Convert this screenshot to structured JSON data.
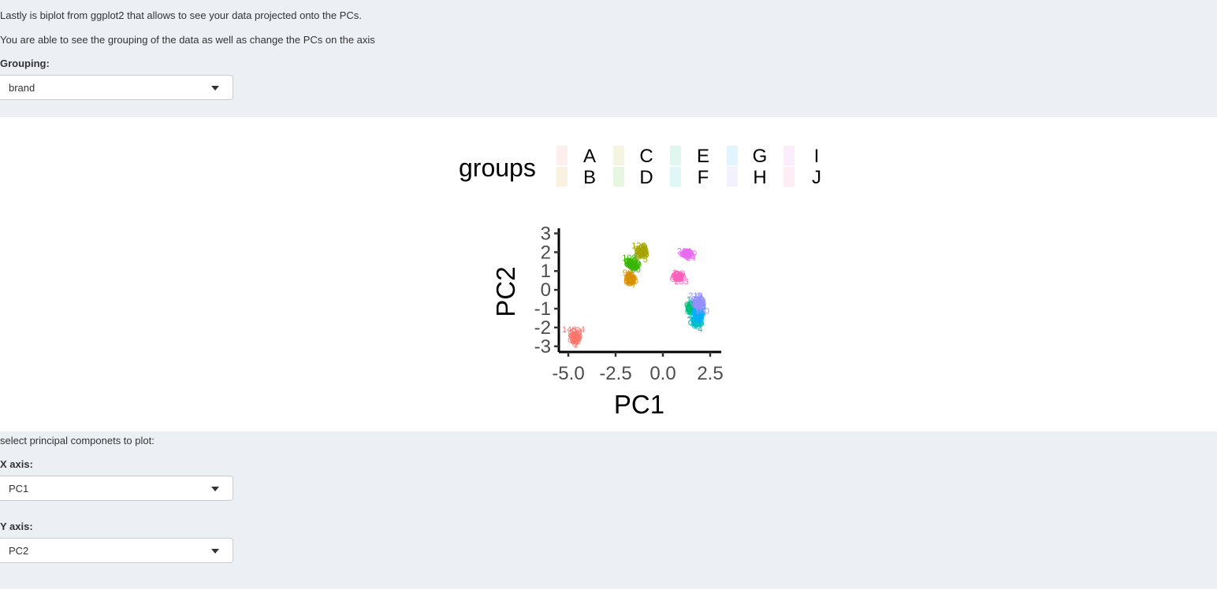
{
  "intro": {
    "line1": "Lastly is biplot from ggplot2 that allows to see your data projected onto the PCs.",
    "line2": "You are able to see the grouping of the data as well as change the PCs on the axis"
  },
  "grouping": {
    "label": "Grouping:",
    "value": "brand"
  },
  "pc_select": {
    "heading": "select principal componets to plot:",
    "x_label": "X axis:",
    "x_value": "PC1",
    "y_label": "Y axis:",
    "y_value": "PC2"
  },
  "chart_data": {
    "type": "scatter",
    "title": "",
    "xlabel": "PC1",
    "ylabel": "PC2",
    "xlim": [
      -5.5,
      3.0
    ],
    "ylim": [
      -3.3,
      3.1
    ],
    "xticks": [
      -5.0,
      -2.5,
      0.0,
      2.5
    ],
    "xtick_labels": [
      "-5.0",
      "-2.5",
      "0.0",
      "2.5"
    ],
    "yticks": [
      -3,
      -2,
      -1,
      0,
      1,
      2,
      3
    ],
    "ytick_labels": [
      "-3",
      "-2",
      "-1",
      "0",
      "1",
      "2",
      "3"
    ],
    "legend": {
      "title": "groups",
      "position": "top",
      "ncol": 5
    },
    "series": [
      {
        "name": "A",
        "color": "#F8766D",
        "center": [
          -4.6,
          -2.5
        ],
        "spread": [
          0.35,
          0.45
        ],
        "labels": [
          "148",
          "1",
          "4"
        ]
      },
      {
        "name": "B",
        "color": "#D89000",
        "center": [
          -1.7,
          0.6
        ],
        "spread": [
          0.3,
          0.35
        ],
        "labels": [
          "99",
          "7"
        ]
      },
      {
        "name": "C",
        "color": "#A3A500",
        "center": [
          -1.1,
          2.0
        ],
        "spread": [
          0.35,
          0.4
        ],
        "labels": [
          "128",
          "5"
        ]
      },
      {
        "name": "D",
        "color": "#39B600",
        "center": [
          -1.6,
          1.4
        ],
        "spread": [
          0.4,
          0.35
        ],
        "labels": [
          "108",
          "60"
        ]
      },
      {
        "name": "E",
        "color": "#00BF7D",
        "center": [
          1.5,
          -0.9
        ],
        "spread": [
          0.3,
          0.45
        ],
        "labels": [
          "13"
        ]
      },
      {
        "name": "F",
        "color": "#00BFC4",
        "center": [
          1.8,
          -1.7
        ],
        "spread": [
          0.35,
          0.4
        ],
        "labels": [
          "152",
          "4"
        ]
      },
      {
        "name": "G",
        "color": "#00B0F6",
        "center": [
          1.9,
          -1.3
        ],
        "spread": [
          0.35,
          0.45
        ],
        "labels": [
          "164"
        ]
      },
      {
        "name": "H",
        "color": "#9590FF",
        "center": [
          1.9,
          -0.7
        ],
        "spread": [
          0.35,
          0.45
        ],
        "labels": [
          "219",
          "160"
        ]
      },
      {
        "name": "I",
        "color": "#E76BF3",
        "center": [
          1.3,
          1.9
        ],
        "spread": [
          0.35,
          0.2
        ],
        "labels": [
          "264",
          "24"
        ]
      },
      {
        "name": "J",
        "color": "#FF62BC",
        "center": [
          0.8,
          0.7
        ],
        "spread": [
          0.35,
          0.25
        ],
        "labels": [
          "2",
          "233"
        ]
      }
    ]
  }
}
